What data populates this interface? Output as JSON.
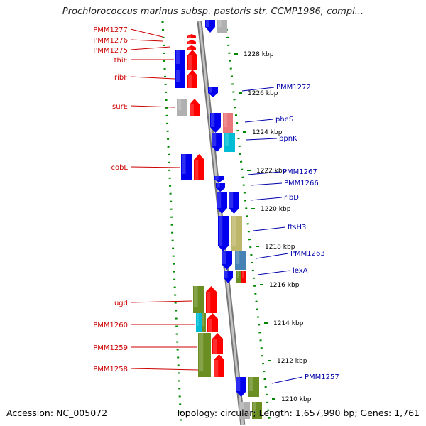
{
  "title": "Prochlorococcus marinus subsp. pastoris str. CCMP1986, compl...",
  "footer": {
    "accession": "Accession: NC_005072",
    "summary": "Topology: circular; Length: 1,657,990 bp; Genes: 1,761"
  },
  "colors": {
    "minus_label": "#cc0000",
    "plus_label": "#0000aa",
    "backbone": "#999999",
    "dotted_border": "#008800",
    "forward_gene": "#ff0000",
    "reverse_gene": "#0000ee",
    "olive_feature": "#6b8e23",
    "khaki_feature": "#bdb76b",
    "teal_feature": "#00bcd4",
    "steel_feature": "#4682b4",
    "salmon_feature": "#e9767a",
    "grey_feature": "#b0b0b0"
  },
  "scale_labels": [
    "1228 kbp",
    "1226 kbp",
    "1224 kbp",
    "1222 kbp",
    "1220 kbp",
    "1218 kbp",
    "1216 kbp",
    "1214 kbp",
    "1212 kbp",
    "1210 kbp"
  ],
  "left_genes": [
    "PMM1277",
    "PMM1276",
    "PMM1275",
    "thiE",
    "ribF",
    "surE",
    "cobL",
    "ugd",
    "PMM1260",
    "PMM1259",
    "PMM1258"
  ],
  "right_genes": [
    "PMM1272",
    "pheS",
    "ppnK",
    "PMM1267",
    "PMM1266",
    "ribD",
    "ftsH3",
    "PMM1263",
    "lexA",
    "PMM1257"
  ]
}
